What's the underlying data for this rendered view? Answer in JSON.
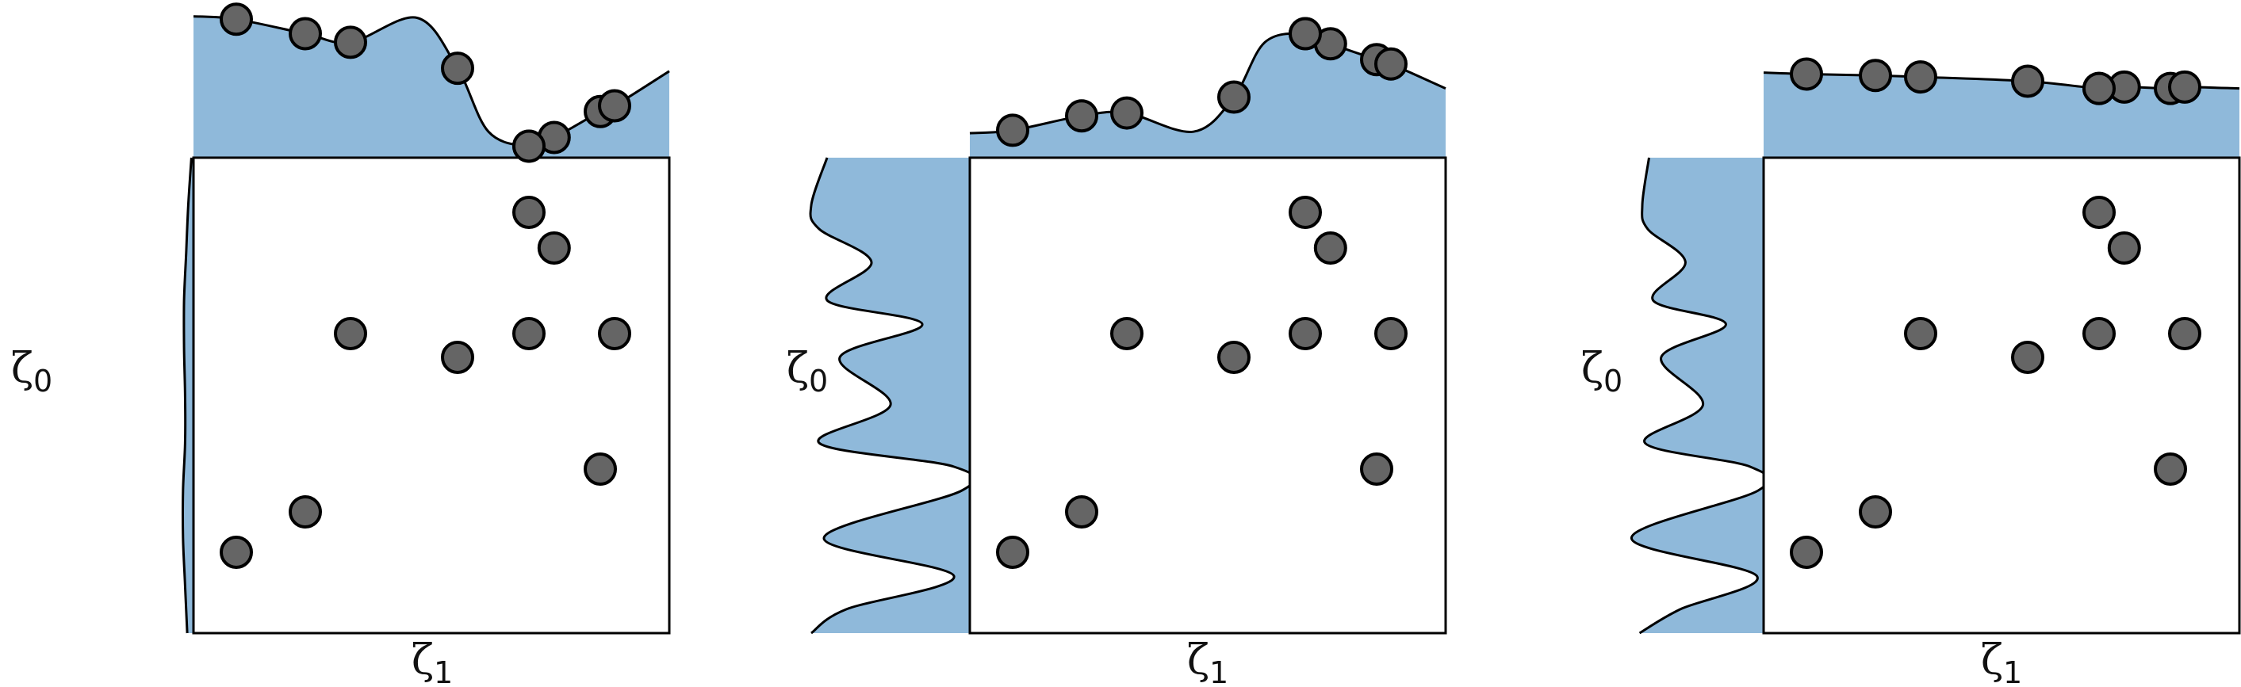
{
  "colors": {
    "kde_fill": "#8fb9da",
    "kde_line": "#000000",
    "point_fill": "#656565",
    "point_edge": "#000000",
    "frame": "#000000"
  },
  "chart_data": [
    {
      "type": "scatter",
      "xlabel": "ζ1",
      "ylabel": "ζ0",
      "xlim": [
        0,
        1
      ],
      "ylim": [
        0,
        1
      ],
      "grid": false,
      "marginals": "kde (top: ζ1, left: ζ0)",
      "points": {
        "x": [
          0.09,
          0.235,
          0.33,
          0.555,
          0.705,
          0.758,
          0.855,
          0.885,
          0.705
        ],
        "y": [
          0.17,
          0.255,
          0.63,
          0.58,
          0.63,
          0.81,
          0.345,
          0.63,
          0.885
        ]
      },
      "top_kde": {
        "x": [
          0,
          0.09,
          0.235,
          0.33,
          0.47,
          0.555,
          0.62,
          0.705,
          0.758,
          0.855,
          0.885,
          1
        ],
        "density": [
          0.98,
          0.96,
          0.86,
          0.8,
          0.97,
          0.62,
          0.18,
          0.08,
          0.14,
          0.32,
          0.36,
          0.6
        ]
      },
      "left_kde": {
        "y": [
          0,
          0.1,
          0.2,
          0.3,
          0.4,
          0.5,
          0.6,
          0.7,
          0.8,
          0.9,
          1.0
        ],
        "density": [
          0.06,
          0.08,
          0.1,
          0.1,
          0.08,
          0.08,
          0.09,
          0.09,
          0.07,
          0.05,
          0.02
        ]
      }
    },
    {
      "type": "scatter",
      "xlabel": "ζ1",
      "ylabel": "ζ0",
      "xlim": [
        0,
        1
      ],
      "ylim": [
        0,
        1
      ],
      "grid": false,
      "marginals": "kde (top: ζ1, left: ζ0)",
      "points": {
        "x": [
          0.09,
          0.235,
          0.33,
          0.555,
          0.705,
          0.758,
          0.855,
          0.885,
          0.705
        ],
        "y": [
          0.17,
          0.255,
          0.63,
          0.58,
          0.63,
          0.81,
          0.345,
          0.63,
          0.885
        ]
      },
      "top_kde": {
        "x": [
          0,
          0.09,
          0.235,
          0.33,
          0.47,
          0.555,
          0.62,
          0.705,
          0.758,
          0.855,
          0.885,
          1
        ],
        "density": [
          0.17,
          0.19,
          0.29,
          0.31,
          0.18,
          0.42,
          0.8,
          0.86,
          0.79,
          0.68,
          0.65,
          0.48
        ]
      },
      "left_kde": {
        "y": [
          0,
          0.05,
          0.12,
          0.2,
          0.3,
          0.35,
          0.4,
          0.48,
          0.58,
          0.65,
          0.7,
          0.78,
          0.85,
          0.9,
          1.0
        ],
        "density": [
          1.0,
          0.78,
          0.1,
          0.92,
          0.05,
          0.1,
          0.95,
          0.5,
          0.82,
          0.3,
          0.9,
          0.62,
          0.95,
          1.0,
          0.9
        ]
      }
    },
    {
      "type": "scatter",
      "xlabel": "ζ1",
      "ylabel": "ζ0",
      "xlim": [
        0,
        1
      ],
      "ylim": [
        0,
        1
      ],
      "grid": false,
      "marginals": "kde (top: ζ1, left: ζ0)",
      "points": {
        "x": [
          0.09,
          0.235,
          0.33,
          0.555,
          0.705,
          0.758,
          0.855,
          0.885,
          0.705
        ],
        "y": [
          0.17,
          0.255,
          0.63,
          0.58,
          0.63,
          0.81,
          0.345,
          0.63,
          0.885
        ]
      },
      "top_kde": {
        "x": [
          0,
          0.09,
          0.235,
          0.33,
          0.555,
          0.705,
          0.758,
          0.855,
          0.885,
          1
        ],
        "density": [
          0.59,
          0.58,
          0.57,
          0.56,
          0.53,
          0.48,
          0.49,
          0.48,
          0.49,
          0.48
        ]
      },
      "left_kde": {
        "y": [
          0,
          0.05,
          0.12,
          0.2,
          0.3,
          0.35,
          0.4,
          0.48,
          0.58,
          0.65,
          0.7,
          0.78,
          0.85,
          0.9,
          1.0
        ],
        "density": [
          0.92,
          0.62,
          0.05,
          0.98,
          0.04,
          0.1,
          0.88,
          0.45,
          0.76,
          0.28,
          0.82,
          0.58,
          0.86,
          0.9,
          0.85
        ]
      }
    }
  ]
}
